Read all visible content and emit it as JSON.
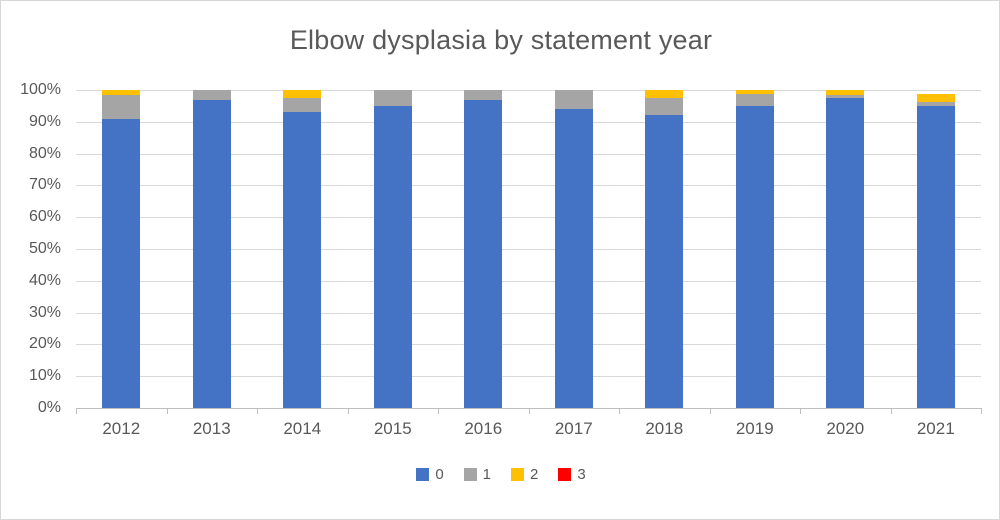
{
  "chart_data": {
    "type": "bar",
    "variant": "stacked-percentage",
    "title": "Elbow dysplasia by statement year",
    "xlabel": "",
    "ylabel": "",
    "categories": [
      "2012",
      "2013",
      "2014",
      "2015",
      "2016",
      "2017",
      "2018",
      "2019",
      "2020",
      "2021"
    ],
    "series": [
      {
        "name": "0",
        "color": "#4472C4",
        "values": [
          91,
          97,
          93,
          95,
          97,
          94,
          92,
          95,
          97.5,
          95
        ]
      },
      {
        "name": "1",
        "color": "#A5A5A5",
        "values": [
          7.5,
          3,
          4.5,
          5,
          3,
          6,
          5.5,
          3.8,
          1,
          1.2
        ]
      },
      {
        "name": "2",
        "color": "#FFC000",
        "values": [
          1.5,
          0,
          2.5,
          0,
          0,
          0,
          2.5,
          1.2,
          1.5,
          2.4
        ]
      },
      {
        "name": "3",
        "color": "#FF0000",
        "values": [
          0,
          0,
          0,
          0,
          0,
          0,
          0,
          0,
          0,
          0
        ]
      }
    ],
    "ylim": [
      0,
      100
    ],
    "y_ticks": [
      "0%",
      "10%",
      "20%",
      "30%",
      "40%",
      "50%",
      "60%",
      "70%",
      "80%",
      "90%",
      "100%"
    ],
    "grid": true,
    "gridline_color": "#D9D9D9",
    "axis_text_color": "#595959",
    "legend_position": "bottom",
    "legend_entries": [
      "0",
      "1",
      "2",
      "3"
    ]
  }
}
